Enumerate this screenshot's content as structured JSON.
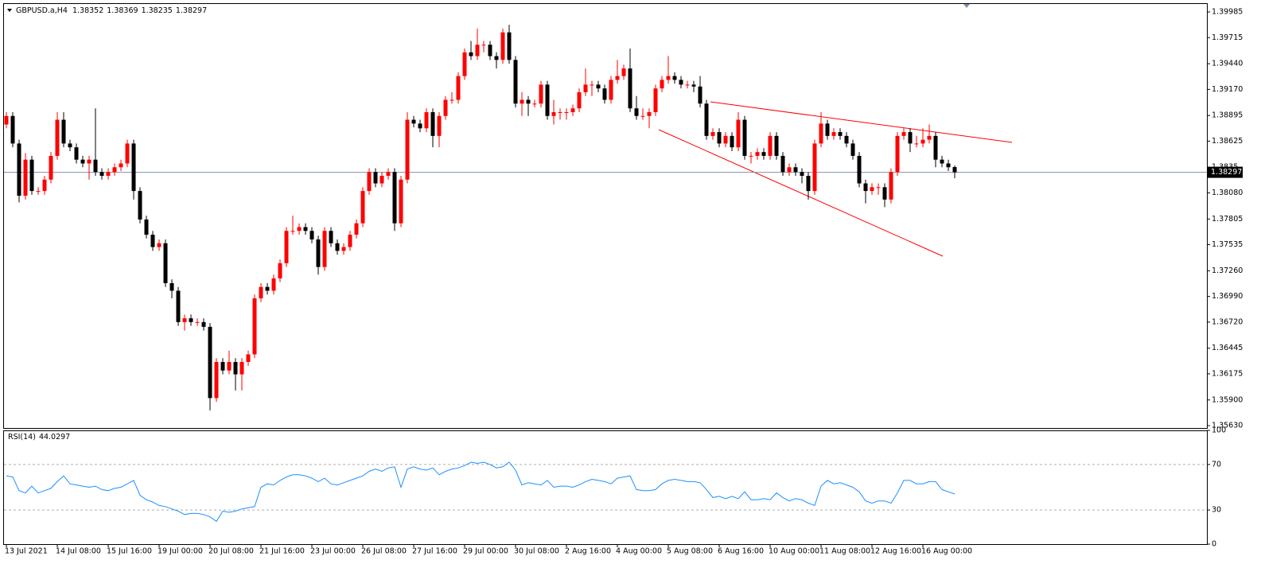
{
  "chart_data": {
    "type": "candlestick",
    "title": "GBPUSD.a,H4",
    "categories": [
      "13 Jul 2021",
      null,
      null,
      null,
      null,
      null,
      null,
      null,
      "14 Jul 08:00",
      null,
      null,
      null,
      null,
      null,
      null,
      null,
      "15 Jul 16:00",
      null,
      null,
      null,
      null,
      null,
      null,
      null,
      "19 Jul 00:00",
      null,
      null,
      null,
      null,
      null,
      null,
      null,
      "20 Jul 08:00",
      null,
      null,
      null,
      null,
      null,
      null,
      null,
      "21 Jul 16:00",
      null,
      null,
      null,
      null,
      null,
      null,
      null,
      "23 Jul 00:00",
      null,
      null,
      null,
      null,
      null,
      null,
      null,
      "26 Jul 08:00",
      null,
      null,
      null,
      null,
      null,
      null,
      null,
      "27 Jul 16:00",
      null,
      null,
      null,
      null,
      null,
      null,
      null,
      "29 Jul 00:00",
      null,
      null,
      null,
      null,
      null,
      null,
      null,
      "30 Jul 08:00",
      null,
      null,
      null,
      null,
      null,
      null,
      null,
      "2 Aug 16:00",
      null,
      null,
      null,
      null,
      null,
      null,
      null,
      "4 Aug 00:00",
      null,
      null,
      null,
      null,
      null,
      null,
      null,
      "5 Aug 08:00",
      null,
      null,
      null,
      null,
      null,
      null,
      null,
      "6 Aug 16:00",
      null,
      null,
      null,
      null,
      null,
      null,
      null,
      "10 Aug 00:00",
      null,
      null,
      null,
      null,
      null,
      null,
      null,
      "11 Aug 08:00",
      null,
      null,
      null,
      null,
      null,
      null,
      null,
      "12 Aug 16:00",
      null,
      null,
      null,
      null,
      null,
      null,
      null,
      "16 Aug 00:00",
      null,
      null,
      null,
      null,
      null
    ],
    "open": [
      1.388,
      1.3889,
      1.386,
      1.3805,
      1.3843,
      1.381,
      1.381,
      1.3822,
      1.3847,
      1.3885,
      1.386,
      1.3856,
      1.3843,
      1.3839,
      1.3843,
      1.383,
      1.3826,
      1.383,
      1.3835,
      1.3839,
      1.386,
      1.381,
      1.378,
      1.3764,
      1.3751,
      1.3755,
      1.3713,
      1.3705,
      1.3672,
      1.3676,
      1.3672,
      1.3672,
      1.3667,
      1.3592,
      1.363,
      1.3621,
      1.363,
      1.3617,
      1.363,
      1.3638,
      1.3697,
      1.3709,
      1.3705,
      1.3718,
      1.3734,
      1.3768,
      1.3768,
      1.3772,
      1.3768,
      1.3759,
      1.373,
      1.3768,
      1.3755,
      1.3747,
      1.3751,
      1.3764,
      1.3776,
      1.381,
      1.383,
      1.3818,
      1.3826,
      1.383,
      1.3776,
      1.3822,
      1.3885,
      1.3881,
      1.3876,
      1.3893,
      1.3868,
      1.3889,
      1.3906,
      1.3906,
      1.3931,
      1.3956,
      1.3952,
      1.3964,
      1.3964,
      1.3952,
      1.3948,
      1.3977,
      1.3948,
      1.3902,
      1.3906,
      1.3902,
      1.3902,
      1.3922,
      1.3889,
      1.3893,
      1.3893,
      1.3893,
      1.3897,
      1.3914,
      1.3922,
      1.3922,
      1.3918,
      1.3906,
      1.3927,
      1.3931,
      1.3939,
      1.3897,
      1.3889,
      1.3889,
      1.3893,
      1.3918,
      1.3927,
      1.3931,
      1.3927,
      1.3922,
      1.3922,
      1.392,
      1.3902,
      1.3868,
      1.3872,
      1.386,
      1.3868,
      1.3856,
      1.3885,
      1.3847,
      1.3847,
      1.3851,
      1.3847,
      1.3868,
      1.3847,
      1.383,
      1.3835,
      1.383,
      1.3826,
      1.381,
      1.386,
      1.3881,
      1.3868,
      1.3872,
      1.3868,
      1.386,
      1.3847,
      1.3818,
      1.381,
      1.3814,
      1.3814,
      1.3801,
      1.383,
      1.3868,
      1.3872,
      1.386,
      1.386,
      1.3864,
      1.3868,
      1.3843,
      1.3839,
      1.38352
    ],
    "high": [
      1.3893,
      1.3893,
      1.3864,
      1.385,
      1.3847,
      1.3814,
      1.3826,
      1.3851,
      1.3893,
      1.3893,
      1.3864,
      1.386,
      1.3847,
      1.3847,
      1.3897,
      1.3834,
      1.3834,
      1.3839,
      1.3843,
      1.3864,
      1.3864,
      1.3814,
      1.3784,
      1.3768,
      1.3759,
      1.3759,
      1.3717,
      1.3709,
      1.368,
      1.368,
      1.3676,
      1.3676,
      1.3671,
      1.3634,
      1.3634,
      1.3642,
      1.3634,
      1.3634,
      1.3642,
      1.3701,
      1.3713,
      1.3713,
      1.3722,
      1.3738,
      1.3772,
      1.3784,
      1.3776,
      1.3776,
      1.3772,
      1.3763,
      1.3772,
      1.3772,
      1.3759,
      1.3755,
      1.3768,
      1.378,
      1.3814,
      1.3834,
      1.3834,
      1.383,
      1.3834,
      1.3834,
      1.3826,
      1.3893,
      1.3889,
      1.3885,
      1.3897,
      1.3897,
      1.3893,
      1.391,
      1.3914,
      1.3935,
      1.396,
      1.3968,
      1.3981,
      1.3968,
      1.3968,
      1.3956,
      1.3981,
      1.3985,
      1.3952,
      1.3914,
      1.391,
      1.3906,
      1.3926,
      1.3926,
      1.3906,
      1.3897,
      1.3897,
      1.3901,
      1.3918,
      1.3939,
      1.3926,
      1.3926,
      1.3922,
      1.3931,
      1.3948,
      1.3943,
      1.396,
      1.391,
      1.3897,
      1.3897,
      1.3922,
      1.3931,
      1.3952,
      1.3935,
      1.3931,
      1.3926,
      1.3926,
      1.3931,
      1.3906,
      1.3876,
      1.3876,
      1.3872,
      1.3872,
      1.3893,
      1.3889,
      1.3851,
      1.3855,
      1.3855,
      1.3872,
      1.3872,
      1.3851,
      1.3839,
      1.3839,
      1.3834,
      1.383,
      1.3864,
      1.3893,
      1.3885,
      1.3876,
      1.3876,
      1.3872,
      1.3864,
      1.3851,
      1.3822,
      1.3818,
      1.3818,
      1.3818,
      1.3834,
      1.3872,
      1.3876,
      1.3876,
      1.3868,
      1.3876,
      1.388,
      1.3872,
      1.3847,
      1.3843,
      1.38369
    ],
    "low": [
      1.3876,
      1.3856,
      1.3798,
      1.3801,
      1.3806,
      1.3806,
      1.3806,
      1.3818,
      1.3843,
      1.3856,
      1.3852,
      1.3839,
      1.3835,
      1.3822,
      1.3826,
      1.3822,
      1.3822,
      1.3826,
      1.3831,
      1.3835,
      1.3801,
      1.3776,
      1.376,
      1.3747,
      1.3747,
      1.3709,
      1.3697,
      1.3668,
      1.3663,
      1.3668,
      1.3668,
      1.3663,
      1.3579,
      1.3588,
      1.3617,
      1.3617,
      1.36,
      1.36,
      1.3626,
      1.3634,
      1.3693,
      1.3701,
      1.3701,
      1.3714,
      1.373,
      1.3764,
      1.3764,
      1.3764,
      1.3755,
      1.3722,
      1.3726,
      1.3751,
      1.3743,
      1.3743,
      1.3747,
      1.376,
      1.3772,
      1.3806,
      1.3814,
      1.3814,
      1.3822,
      1.3768,
      1.3772,
      1.3818,
      1.3877,
      1.3872,
      1.3872,
      1.3856,
      1.3856,
      1.3885,
      1.3902,
      1.3902,
      1.3927,
      1.3948,
      1.3948,
      1.3956,
      1.3948,
      1.3939,
      1.3944,
      1.3944,
      1.3898,
      1.3889,
      1.3889,
      1.3898,
      1.3898,
      1.3885,
      1.388,
      1.3885,
      1.3885,
      1.3889,
      1.3893,
      1.391,
      1.391,
      1.3914,
      1.3902,
      1.3902,
      1.3923,
      1.3927,
      1.3893,
      1.3885,
      1.3885,
      1.3876,
      1.3889,
      1.3914,
      1.3923,
      1.3923,
      1.3918,
      1.3918,
      1.3914,
      1.3898,
      1.3864,
      1.3864,
      1.3856,
      1.3856,
      1.3852,
      1.3852,
      1.3843,
      1.3839,
      1.3843,
      1.3843,
      1.3843,
      1.3843,
      1.3826,
      1.3826,
      1.3826,
      1.3818,
      1.3801,
      1.3806,
      1.3856,
      1.3864,
      1.3864,
      1.3864,
      1.3856,
      1.3843,
      1.3814,
      1.3797,
      1.3806,
      1.3806,
      1.3793,
      1.3797,
      1.3826,
      1.3864,
      1.3851,
      1.3856,
      1.3856,
      1.386,
      1.3835,
      1.3835,
      1.3831,
      1.38235
    ],
    "close": [
      1.3889,
      1.386,
      1.3805,
      1.3843,
      1.381,
      1.381,
      1.3822,
      1.3847,
      1.3885,
      1.386,
      1.3856,
      1.3843,
      1.3839,
      1.3843,
      1.383,
      1.3826,
      1.383,
      1.3835,
      1.3839,
      1.386,
      1.381,
      1.378,
      1.3764,
      1.3751,
      1.3755,
      1.3713,
      1.3705,
      1.3672,
      1.3676,
      1.3672,
      1.3672,
      1.3667,
      1.3592,
      1.363,
      1.3621,
      1.363,
      1.3617,
      1.363,
      1.3638,
      1.3697,
      1.3709,
      1.3705,
      1.3718,
      1.3734,
      1.3768,
      1.3768,
      1.3772,
      1.3768,
      1.3759,
      1.373,
      1.3768,
      1.3755,
      1.3747,
      1.3751,
      1.3764,
      1.3776,
      1.381,
      1.383,
      1.3818,
      1.3826,
      1.383,
      1.3776,
      1.3822,
      1.3885,
      1.3881,
      1.3876,
      1.3893,
      1.3868,
      1.3889,
      1.3906,
      1.3906,
      1.3931,
      1.3956,
      1.3952,
      1.3964,
      1.3964,
      1.3952,
      1.3948,
      1.3977,
      1.3948,
      1.3902,
      1.3906,
      1.3902,
      1.3902,
      1.3922,
      1.3889,
      1.3893,
      1.3893,
      1.3893,
      1.3897,
      1.3914,
      1.3922,
      1.3922,
      1.3918,
      1.3906,
      1.3927,
      1.3931,
      1.3939,
      1.3897,
      1.3889,
      1.3889,
      1.3893,
      1.3918,
      1.3927,
      1.3931,
      1.3927,
      1.3922,
      1.3922,
      1.392,
      1.3902,
      1.3868,
      1.3872,
      1.386,
      1.3868,
      1.3856,
      1.3885,
      1.3847,
      1.3847,
      1.3851,
      1.3847,
      1.3868,
      1.3847,
      1.383,
      1.3835,
      1.383,
      1.3826,
      1.381,
      1.386,
      1.3881,
      1.3868,
      1.3872,
      1.3868,
      1.386,
      1.3847,
      1.3818,
      1.381,
      1.3814,
      1.3814,
      1.3801,
      1.383,
      1.3868,
      1.3872,
      1.386,
      1.386,
      1.3864,
      1.3868,
      1.3843,
      1.3839,
      1.3835,
      1.38297
    ],
    "up_color": "#ff0000",
    "down_color": "#000000",
    "current_price_color": "#8090aa",
    "ylim": [
      1.35605,
      1.40069
    ],
    "yticks": [
      1.39985,
      1.39715,
      {
        "value": 1.3944,
        "label": "1.39440"
      },
      {
        "value": 1.3917,
        "label": "1.39170"
      },
      1.38895,
      1.38625,
      1.3835,
      {
        "value": 1.3808,
        "label": "1.38080"
      },
      1.37805,
      1.37535,
      {
        "value": 1.3726,
        "label": "1.37260"
      },
      {
        "value": 1.3699,
        "label": "1.36990"
      },
      {
        "value": 1.3672,
        "label": "1.36720"
      },
      1.36445,
      1.36175,
      {
        "value": 1.359,
        "label": "1.35900"
      },
      {
        "value": 1.3563,
        "label": "1.35630"
      }
    ],
    "rsi": {
      "title": "RSI(14)",
      "color": "#1e90ff",
      "ylim": [
        0,
        100
      ],
      "yticks": [
        100,
        70,
        30,
        0
      ],
      "values": [
        60,
        59,
        47,
        45,
        51,
        45,
        47,
        49,
        55,
        60,
        53,
        52,
        51,
        50,
        51,
        48,
        47,
        49,
        50,
        53,
        56,
        43,
        39,
        37,
        34,
        33,
        31,
        29,
        26,
        27,
        27,
        26,
        24,
        20,
        29,
        28,
        29,
        31,
        32,
        33,
        50,
        53,
        52,
        56,
        59,
        61,
        61,
        60,
        58,
        55,
        58,
        53,
        52,
        54,
        56,
        58,
        60,
        64,
        66,
        64,
        67,
        68,
        50,
        66,
        68,
        66,
        65,
        67,
        61,
        64,
        66,
        67,
        69,
        72,
        71,
        72,
        70,
        67,
        68,
        72,
        65,
        52,
        54,
        53,
        52,
        56,
        50,
        51,
        51,
        50,
        52,
        55,
        57,
        56,
        55,
        53,
        58,
        59,
        60,
        48,
        47,
        47,
        48,
        53,
        56,
        57,
        56,
        55,
        55,
        54,
        48,
        41,
        42,
        40,
        42,
        40,
        46,
        39,
        39,
        40,
        39,
        45,
        41,
        38,
        40,
        39,
        36,
        34,
        51,
        56,
        53,
        54,
        52,
        50,
        46,
        38,
        36,
        38,
        38,
        36,
        45,
        56,
        56,
        53,
        53,
        55,
        55,
        48,
        46,
        44.0297
      ]
    }
  }
}
